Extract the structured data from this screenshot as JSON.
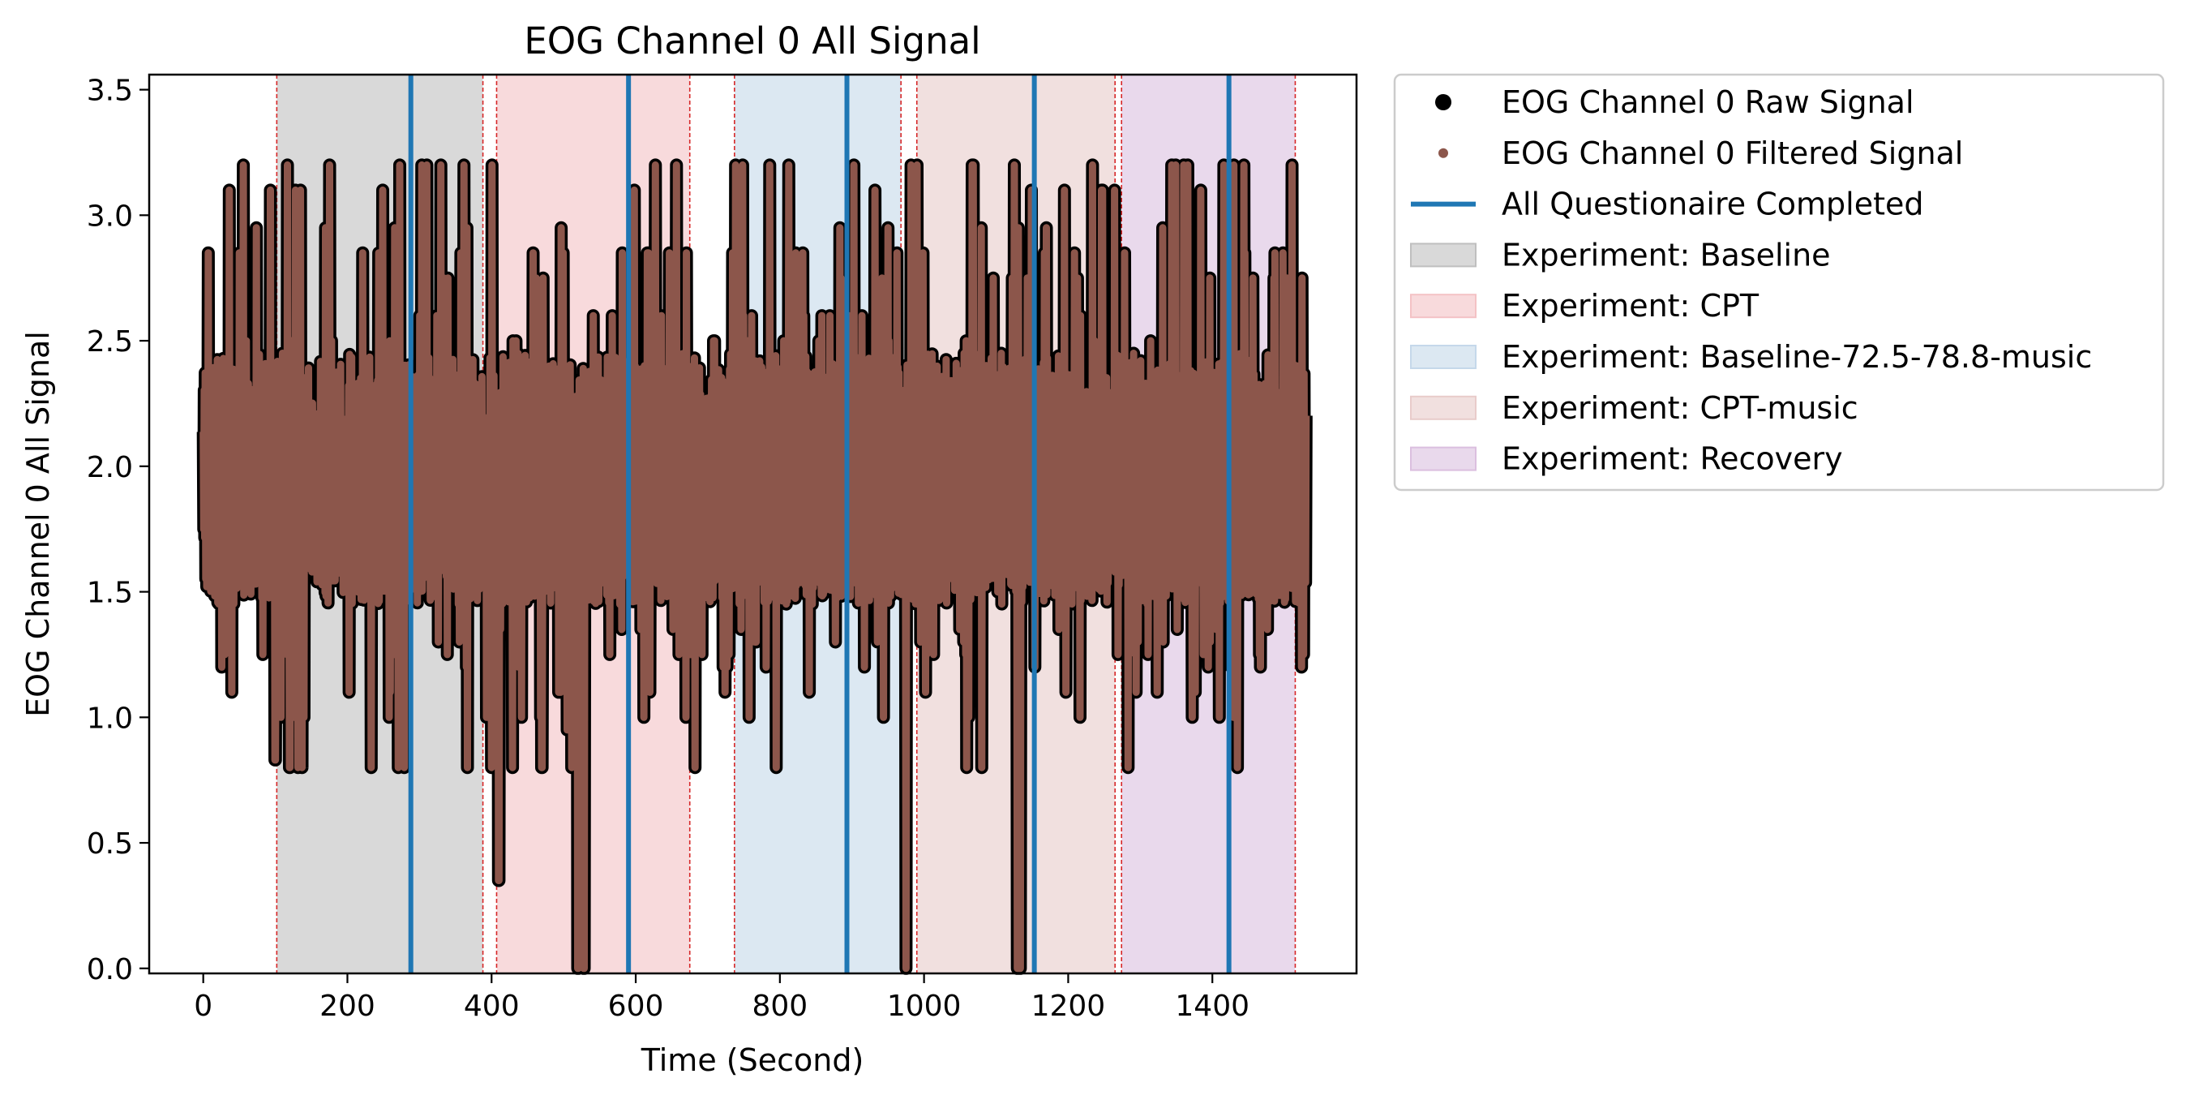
{
  "chart_data": {
    "type": "line",
    "title": "EOG Channel 0 All Signal",
    "xlabel": "Time (Second)",
    "ylabel": "EOG Channel 0 All Signal",
    "xlim": [
      -75,
      1600
    ],
    "ylim": [
      -0.02,
      3.56
    ],
    "xticks": [
      0,
      200,
      400,
      600,
      800,
      1000,
      1200,
      1400
    ],
    "yticks": [
      0.0,
      0.5,
      1.0,
      1.5,
      2.0,
      2.5,
      3.0,
      3.5
    ],
    "xtick_labels": [
      "0",
      "200",
      "400",
      "600",
      "800",
      "1000",
      "1200",
      "1400"
    ],
    "ytick_labels": [
      "0.0",
      "0.5",
      "1.0",
      "1.5",
      "2.0",
      "2.5",
      "3.0",
      "3.5"
    ],
    "grid": false,
    "legend_position": "outside-right-top",
    "signal_range": [
      0,
      1530
    ],
    "series": [
      {
        "name": "EOG Channel 0 Raw Signal",
        "color": "#000000",
        "marker": "dot"
      },
      {
        "name": "EOG Channel 0 Filtered Signal",
        "color": "#8c564b",
        "marker": "dot"
      }
    ],
    "vlines": {
      "name": "All Questionaire Completed",
      "color": "#1f77b4",
      "x": [
        288,
        590,
        893,
        1153,
        1423
      ]
    },
    "boundary_lines": {
      "color": "#d62728",
      "x": [
        102,
        388,
        407,
        675,
        737,
        968,
        990,
        1265,
        1274,
        1515
      ]
    },
    "regions": [
      {
        "name": "Experiment: Baseline",
        "color": "#bfbfbf",
        "spans": [
          [
            102,
            388
          ]
        ]
      },
      {
        "name": "Experiment: CPT",
        "color": "#f4c2c5",
        "spans": [
          [
            407,
            675
          ]
        ]
      },
      {
        "name": "Experiment: Baseline-72.5-78.8-music",
        "color": "#c5d8ea",
        "spans": [
          [
            737,
            968
          ]
        ]
      },
      {
        "name": "Experiment: CPT-music",
        "color": "#e8cbca",
        "spans": [
          [
            990,
            1265
          ]
        ]
      },
      {
        "name": "Experiment: Recovery",
        "color": "#dbbfdf",
        "spans": [
          [
            1274,
            1515
          ]
        ]
      }
    ],
    "legend": [
      {
        "label": "EOG Channel 0 Raw Signal",
        "kind": "dot",
        "color": "#000000"
      },
      {
        "label": "EOG Channel 0 Filtered Signal",
        "kind": "smalldot",
        "color": "#8c564b"
      },
      {
        "label": "All Questionaire Completed",
        "kind": "line",
        "color": "#1f77b4"
      },
      {
        "label": "Experiment: Baseline",
        "kind": "patch",
        "color": "#bfbfbf"
      },
      {
        "label": "Experiment: CPT",
        "kind": "patch",
        "color": "#f4c2c5"
      },
      {
        "label": "Experiment: Baseline-72.5-78.8-music",
        "kind": "patch",
        "color": "#c5d8ea"
      },
      {
        "label": "Experiment: CPT-music",
        "kind": "patch",
        "color": "#e8cbca"
      },
      {
        "label": "Experiment: Recovery",
        "kind": "patch",
        "color": "#dbbfdf"
      }
    ]
  }
}
